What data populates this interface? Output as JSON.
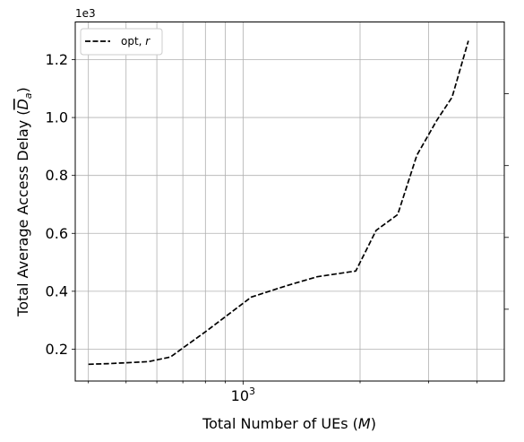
{
  "chart_data": {
    "type": "line",
    "xscale": "log",
    "grid": true,
    "legend_position": "top-left",
    "xlabel": "Total Number of UEs (M)",
    "ylabel": "Total Average Access Delay (D̄a)",
    "y_offset_label": "1e3",
    "xlim": [
      370,
      4700
    ],
    "ylim": [
      90,
      1330
    ],
    "x_tick_labels": [
      {
        "value": 1000,
        "label": "10",
        "exponent": "3"
      }
    ],
    "y_ticks": [
      {
        "value": 200,
        "label": "0.2"
      },
      {
        "value": 400,
        "label": "0.4"
      },
      {
        "value": 600,
        "label": "0.6"
      },
      {
        "value": 800,
        "label": "0.8"
      },
      {
        "value": 1000,
        "label": "1.0"
      },
      {
        "value": 1200,
        "label": "1.2"
      }
    ],
    "series": [
      {
        "name": "opt, r",
        "color": "#000000",
        "style": "dashed",
        "x": [
          400,
          450,
          570,
          650,
          800,
          1050,
          1300,
          1550,
          1950,
          2200,
          2500,
          2800,
          3150,
          3450,
          3800
        ],
        "y": [
          148,
          150,
          157,
          173,
          260,
          380,
          420,
          450,
          470,
          610,
          665,
          870,
          990,
          1070,
          1265
        ]
      }
    ]
  }
}
